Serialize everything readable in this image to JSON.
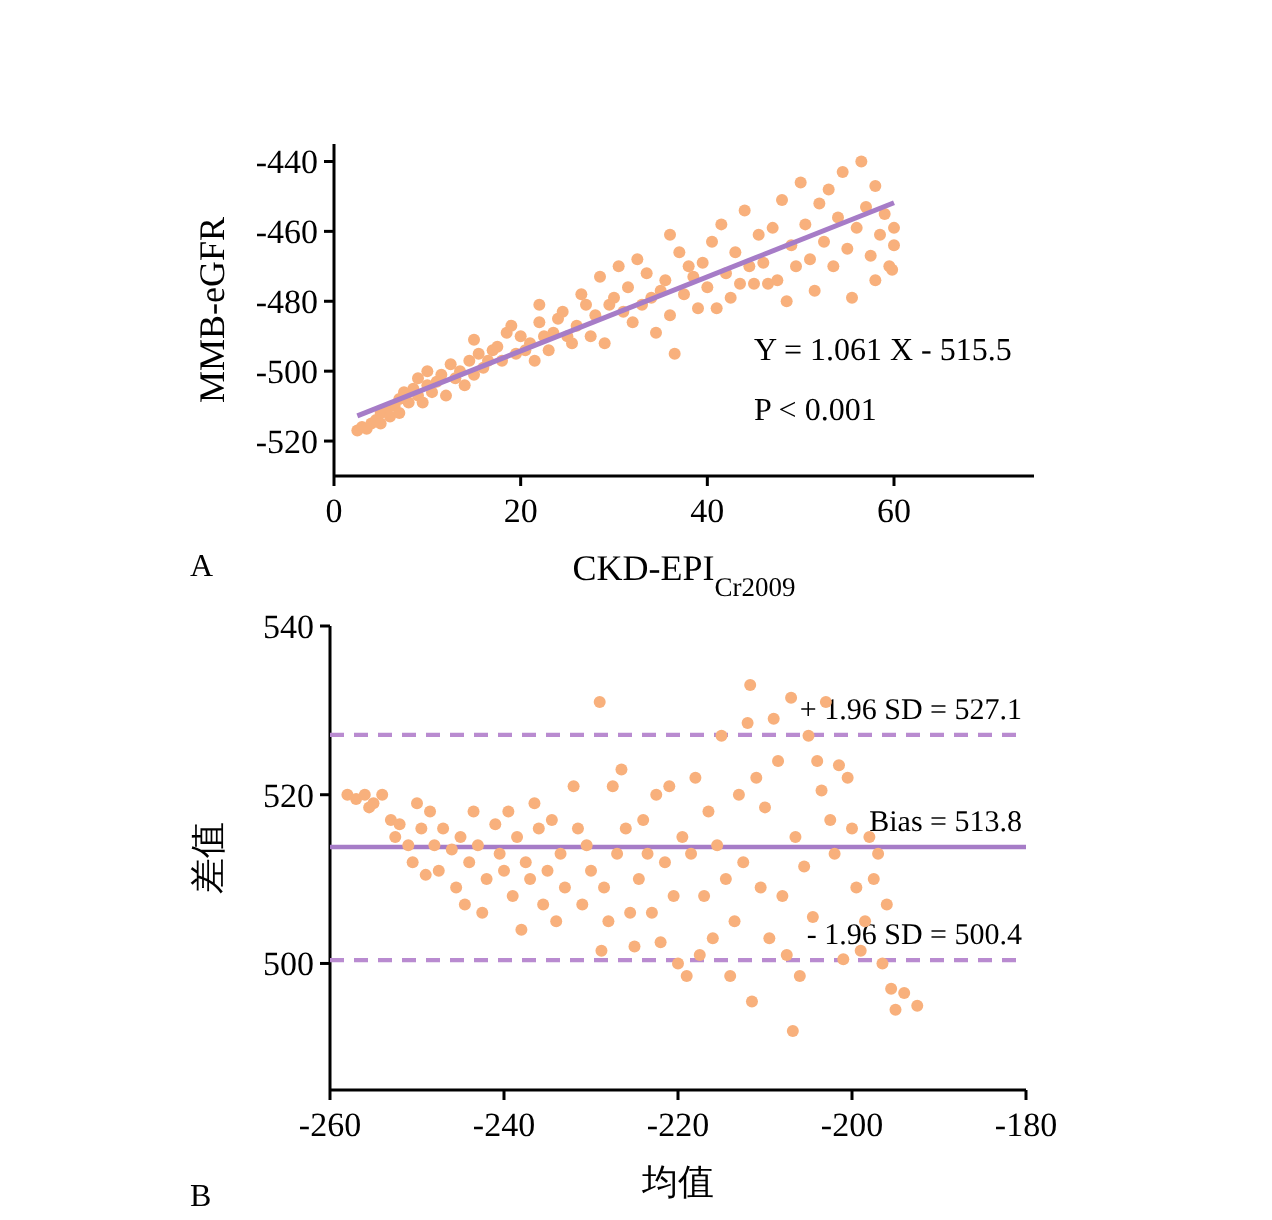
{
  "chart_data": [
    {
      "type": "scatter",
      "xlabel": "CKD-EPI$_{Cr2009}$",
      "ylabel": "MMB-eGFR",
      "xlim": [
        0,
        75
      ],
      "ylim": [
        -530,
        -435
      ],
      "xticks": [
        0,
        20,
        40,
        60
      ],
      "yticks": [
        -520,
        -500,
        -480,
        -460,
        -440
      ],
      "grid": false,
      "annotations": [
        "A",
        "Y = 1.061 X - 515.5",
        "P < 0.001"
      ],
      "series": [
        {
          "marker": "circle",
          "color": "#f8b07c",
          "x": [
            2.5,
            3,
            3.5,
            4,
            4.5,
            5,
            5,
            5.5,
            6,
            6.5,
            7,
            7,
            7.5,
            8,
            8.5,
            9,
            9,
            9.5,
            10,
            10,
            10.5,
            11,
            11.5,
            12,
            12.5,
            13,
            13.5,
            14,
            14.5,
            15,
            15,
            15.5,
            16,
            16.5,
            17,
            17.5,
            18,
            18.5,
            19,
            19.5,
            20,
            20.5,
            21,
            21.5,
            22,
            22,
            22.5,
            23,
            23.5,
            24,
            24.5,
            25,
            25.5,
            26,
            26.5,
            27,
            27.5,
            28,
            28.5,
            29,
            29.5,
            30,
            30.5,
            31,
            31.5,
            32,
            32.5,
            33,
            33.5,
            34,
            34.5,
            35,
            35.5,
            36,
            36.5,
            36,
            37,
            37.5,
            38,
            38.5,
            39,
            39.5,
            40,
            40.5,
            41,
            41.5,
            42,
            42.5,
            43,
            43.5,
            44,
            44.5,
            45,
            45.5,
            46,
            46.5,
            47,
            47.5,
            48,
            48.5,
            49,
            49.5,
            50,
            50.5,
            51,
            51.5,
            52,
            52.5,
            53,
            53.5,
            54,
            54.5,
            55,
            55.5,
            56,
            56.5,
            57,
            57.5,
            58,
            58.5,
            59,
            59.5,
            60,
            60,
            59.8,
            58
          ],
          "values": [
            -517,
            -516,
            -516.5,
            -515,
            -514,
            -515,
            -512,
            -511,
            -513,
            -510,
            -508,
            -512,
            -506,
            -509,
            -505,
            -502,
            -507,
            -509,
            -504,
            -500,
            -506,
            -503,
            -501,
            -507,
            -498,
            -502,
            -500,
            -504,
            -497,
            -491,
            -501,
            -495,
            -499,
            -497,
            -494,
            -493,
            -497,
            -489,
            -487,
            -495,
            -490,
            -494,
            -492,
            -497,
            -486,
            -481,
            -490,
            -494,
            -489,
            -485,
            -483,
            -490,
            -492,
            -487,
            -478,
            -481,
            -490,
            -484,
            -473,
            -492,
            -481,
            -479,
            -470,
            -483,
            -476,
            -486,
            -468,
            -481,
            -472,
            -479,
            -489,
            -477,
            -474,
            -484,
            -495,
            -461,
            -466,
            -478,
            -470,
            -473,
            -482,
            -469,
            -476,
            -463,
            -482,
            -458,
            -472,
            -479,
            -466,
            -475,
            -454,
            -470,
            -475,
            -461,
            -469,
            -475,
            -459,
            -474,
            -451,
            -480,
            -464,
            -470,
            -446,
            -458,
            -468,
            -477,
            -452,
            -463,
            -448,
            -470,
            -456,
            -443,
            -465,
            -479,
            -459,
            -440,
            -453,
            -467,
            -447,
            -461,
            -455,
            -470,
            -459,
            -464,
            -471,
            -474
          ]
        },
        {
          "type": "line",
          "color": "#a67cc7",
          "line_style": "solid",
          "x": [
            2.5,
            60
          ],
          "values": [
            -512.8,
            -451.8
          ]
        }
      ]
    },
    {
      "type": "scatter",
      "xlabel": "均值",
      "ylabel": "差值",
      "xlim": [
        -260,
        -180
      ],
      "ylim": [
        485,
        540
      ],
      "xticks": [
        -260,
        -240,
        -220,
        -200,
        -180
      ],
      "yticks": [
        500,
        520,
        540
      ],
      "grid": false,
      "annotations": [
        "B"
      ],
      "ref_lines": [
        {
          "axis": "y",
          "value": 527.1,
          "label": "+ 1.96 SD = 527.1",
          "color": "#b98bd0",
          "line_style": "dashed"
        },
        {
          "axis": "y",
          "value": 513.8,
          "label": "Bias = 513.8",
          "color": "#a67cc7",
          "line_style": "solid"
        },
        {
          "axis": "y",
          "value": 500.4,
          "label": "- 1.96 SD = 500.4",
          "color": "#b98bd0",
          "line_style": "dashed"
        }
      ],
      "series": [
        {
          "marker": "circle",
          "color": "#f8b07c",
          "x": [
            -258,
            -257,
            -256,
            -255.5,
            -255,
            -254,
            -253,
            -252.5,
            -252,
            -251,
            -250.5,
            -250,
            -249.5,
            -249,
            -248.5,
            -248,
            -247.5,
            -247,
            -246,
            -245.5,
            -245,
            -244.5,
            -244,
            -243.5,
            -243,
            -242.5,
            -242,
            -241,
            -240.5,
            -240,
            -239.5,
            -239,
            -238.5,
            -238,
            -237.5,
            -237,
            -236.5,
            -236,
            -235.5,
            -235,
            -234.5,
            -234,
            -233.5,
            -233,
            -232,
            -231.5,
            -231,
            -230.5,
            -230,
            -229,
            -228.8,
            -228.5,
            -228,
            -227.5,
            -227,
            -226.5,
            -226,
            -225.5,
            -225,
            -224.5,
            -224,
            -223.5,
            -223,
            -222.5,
            -222,
            -221.5,
            -221,
            -220.5,
            -220,
            -219.5,
            -219,
            -218.5,
            -218,
            -217.5,
            -217,
            -216.5,
            -216,
            -215.5,
            -215,
            -214.5,
            -214,
            -213.5,
            -213,
            -212.5,
            -212,
            -211.7,
            -211.5,
            -211,
            -210.5,
            -210,
            -209.5,
            -209,
            -208.5,
            -208,
            -207.5,
            -207,
            -206.8,
            -206.5,
            -206,
            -205.5,
            -205,
            -204.5,
            -204,
            -203.5,
            -203,
            -202.5,
            -202,
            -201.5,
            -201,
            -200.5,
            -200,
            -199.5,
            -199,
            -198.5,
            -198,
            -197.5,
            -197,
            -196.5,
            -196,
            -195.5,
            -195,
            -194,
            -192.5
          ],
          "values": [
            520,
            519.5,
            520,
            518.5,
            519,
            520,
            517,
            515,
            516.5,
            514,
            512,
            519,
            516,
            510.5,
            518,
            514,
            511,
            516,
            513.5,
            509,
            515,
            507,
            512,
            518,
            514,
            506,
            510,
            516.5,
            513,
            511,
            518,
            508,
            515,
            504,
            512,
            510,
            519,
            516,
            507,
            511,
            517,
            505,
            513,
            509,
            521,
            516,
            507,
            514,
            511,
            531,
            501.5,
            509,
            505,
            521,
            513,
            523,
            516,
            506,
            502,
            510,
            517,
            513,
            506,
            520,
            502.5,
            512,
            521,
            508,
            500,
            515,
            498.5,
            513,
            522,
            501,
            508,
            518,
            503,
            514,
            527,
            510,
            498.5,
            505,
            520,
            512,
            528.5,
            533,
            495.5,
            522,
            509,
            518.5,
            503,
            529,
            524,
            508,
            501,
            531.5,
            492,
            515,
            498.5,
            511.5,
            527,
            505.5,
            524,
            520.5,
            531,
            517,
            513,
            523.5,
            500.5,
            522,
            516,
            509,
            501.5,
            505,
            515,
            510,
            513,
            500,
            507,
            497,
            494.5,
            496.5,
            495
          ]
        }
      ]
    }
  ]
}
